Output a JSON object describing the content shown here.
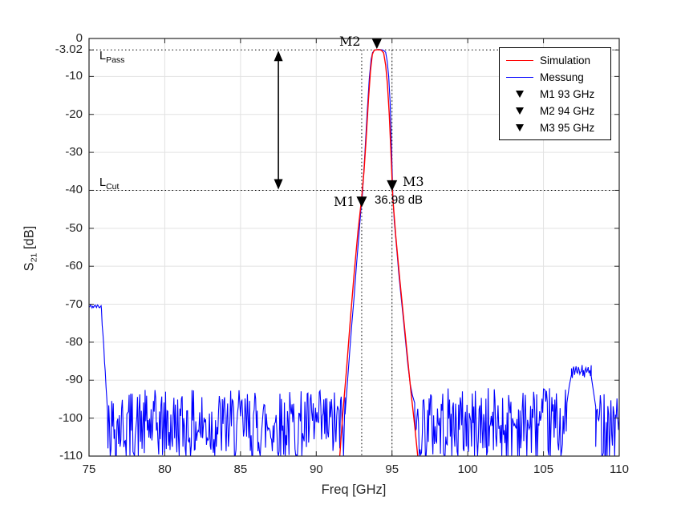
{
  "axes": {
    "xlabel": "Freq [GHz]",
    "ylabel_base": "S",
    "ylabel_sub": "21",
    "ylabel_unit": " [dB]",
    "xticks": [
      "75",
      "80",
      "85",
      "90",
      "95",
      "100",
      "105",
      "110"
    ],
    "xtick_values": [
      75,
      80,
      85,
      90,
      95,
      100,
      105,
      110
    ],
    "yticks": [
      "0",
      "-3.02",
      "-10",
      "-20",
      "-30",
      "-40",
      "-50",
      "-60",
      "-70",
      "-80",
      "-90",
      "-100",
      "-110"
    ],
    "ytick_values": [
      0,
      -3.02,
      -10,
      -20,
      -30,
      -40,
      -50,
      -60,
      -70,
      -80,
      -90,
      -100,
      -110
    ],
    "grid_color": "#e2e2e2",
    "tick_color": "#262626",
    "border_color": "#262626"
  },
  "annotations": {
    "m1": "M1",
    "m2": "M2",
    "m3": "M3",
    "delta": "36.98 dB",
    "lpass_base": "L",
    "lpass_sub": "Pass",
    "lcut_base": "L",
    "lcut_sub": "Cut"
  },
  "legend": {
    "items": [
      {
        "type": "line",
        "color": "#ff0000",
        "label": "Simulation"
      },
      {
        "type": "line",
        "color": "#0000ff",
        "label": "Messung"
      },
      {
        "type": "marker",
        "color": "#000000",
        "label": "M1 93 GHz"
      },
      {
        "type": "marker",
        "color": "#000000",
        "label": "M2 94 GHz"
      },
      {
        "type": "marker",
        "color": "#000000",
        "label": "M3 95 GHz"
      }
    ]
  },
  "chart_data": {
    "type": "line",
    "title": "",
    "xlabel": "Freq [GHz]",
    "ylabel": "S_21 [dB]",
    "xlim": [
      75,
      110
    ],
    "ylim": [
      -110,
      0
    ],
    "grid": true,
    "legend_position": "top-right",
    "reference_lines": {
      "horizontal_db": [
        -3.02,
        -40
      ],
      "vertical_ghz": [
        93,
        95
      ],
      "style": "dotted-black"
    },
    "arrow": {
      "x_ghz": 87.5,
      "from_db": -3.02,
      "to_db": -40,
      "meaning_label": "36.98 dB"
    },
    "markers": [
      {
        "id": "M1",
        "freq_ghz": 93,
        "db": -43,
        "plot_db": -42.9
      },
      {
        "id": "M2",
        "freq_ghz": 94,
        "db": -3.02,
        "plot_db": -1.2
      },
      {
        "id": "M3",
        "freq_ghz": 95,
        "db": -39,
        "plot_db": -38.6
      }
    ],
    "series": [
      {
        "name": "Simulation",
        "color": "#ff0000",
        "points": [
          [
            91.55,
            -110
          ],
          [
            91.75,
            -99
          ],
          [
            92.0,
            -87
          ],
          [
            92.25,
            -74
          ],
          [
            92.5,
            -62
          ],
          [
            92.75,
            -51
          ],
          [
            93.0,
            -42
          ],
          [
            93.15,
            -35
          ],
          [
            93.3,
            -26
          ],
          [
            93.45,
            -16
          ],
          [
            93.58,
            -8.5
          ],
          [
            93.7,
            -4.2
          ],
          [
            93.82,
            -3.1
          ],
          [
            94.0,
            -2.95
          ],
          [
            94.15,
            -2.95
          ],
          [
            94.3,
            -3.1
          ],
          [
            94.45,
            -3.8
          ],
          [
            94.58,
            -7
          ],
          [
            94.7,
            -12
          ],
          [
            94.82,
            -20
          ],
          [
            94.95,
            -32
          ],
          [
            95.05,
            -42
          ],
          [
            95.25,
            -52
          ],
          [
            95.5,
            -63
          ],
          [
            95.75,
            -73
          ],
          [
            96.0,
            -83
          ],
          [
            96.25,
            -93
          ],
          [
            96.5,
            -102
          ],
          [
            96.7,
            -110
          ]
        ]
      },
      {
        "name": "Messung",
        "color": "#0000ff",
        "sample_step_ghz": 0.05,
        "noise_seed": 42,
        "segments": [
          {
            "kind": "flat",
            "from": 75.0,
            "to": 75.82,
            "level": -70.6,
            "jitter": 0.55
          },
          {
            "kind": "ramp",
            "from": 75.82,
            "to": 76.25,
            "start": -71.5,
            "end": -99.5,
            "jitter": 0.8
          },
          {
            "kind": "noise",
            "from": 76.25,
            "to": 91.9,
            "min": -111.5,
            "max": -92.5
          },
          {
            "kind": "anchors",
            "points": [
              [
                91.9,
                -99
              ],
              [
                92.05,
                -91
              ],
              [
                92.2,
                -83
              ],
              [
                92.35,
                -75
              ],
              [
                92.5,
                -68
              ],
              [
                92.65,
                -60
              ],
              [
                92.8,
                -52.5
              ],
              [
                92.95,
                -45
              ],
              [
                93.05,
                -41
              ],
              [
                93.2,
                -31
              ],
              [
                93.35,
                -20
              ],
              [
                93.5,
                -10.5
              ],
              [
                93.62,
                -5.5
              ],
              [
                93.72,
                -3.7
              ],
              [
                93.85,
                -3.1
              ],
              [
                94.0,
                -2.95
              ],
              [
                94.15,
                -2.9
              ],
              [
                94.3,
                -3.0
              ],
              [
                94.45,
                -3.15
              ],
              [
                94.58,
                -3.6
              ],
              [
                94.68,
                -6
              ],
              [
                94.78,
                -10
              ],
              [
                94.88,
                -17
              ],
              [
                94.98,
                -30
              ],
              [
                95.05,
                -41
              ],
              [
                95.15,
                -48
              ],
              [
                95.3,
                -55
              ],
              [
                95.45,
                -62
              ],
              [
                95.6,
                -68
              ],
              [
                95.75,
                -74
              ],
              [
                95.9,
                -80
              ],
              [
                96.05,
                -86
              ],
              [
                96.2,
                -91
              ],
              [
                96.35,
                -94
              ],
              [
                96.5,
                -96
              ]
            ]
          },
          {
            "kind": "noise",
            "from": 96.5,
            "to": 106.55,
            "min": -111.5,
            "max": -92
          },
          {
            "kind": "anchors",
            "points": [
              [
                106.55,
                -96
              ],
              [
                106.7,
                -91.5
              ],
              [
                106.85,
                -88.5
              ]
            ]
          },
          {
            "kind": "noise",
            "from": 106.85,
            "to": 108.15,
            "min": -89.5,
            "max": -86
          },
          {
            "kind": "anchors",
            "points": [
              [
                108.15,
                -89
              ],
              [
                108.3,
                -93
              ],
              [
                108.45,
                -97
              ]
            ]
          },
          {
            "kind": "noise",
            "from": 108.45,
            "to": 110.0,
            "min": -111,
            "max": -92
          }
        ]
      }
    ]
  }
}
